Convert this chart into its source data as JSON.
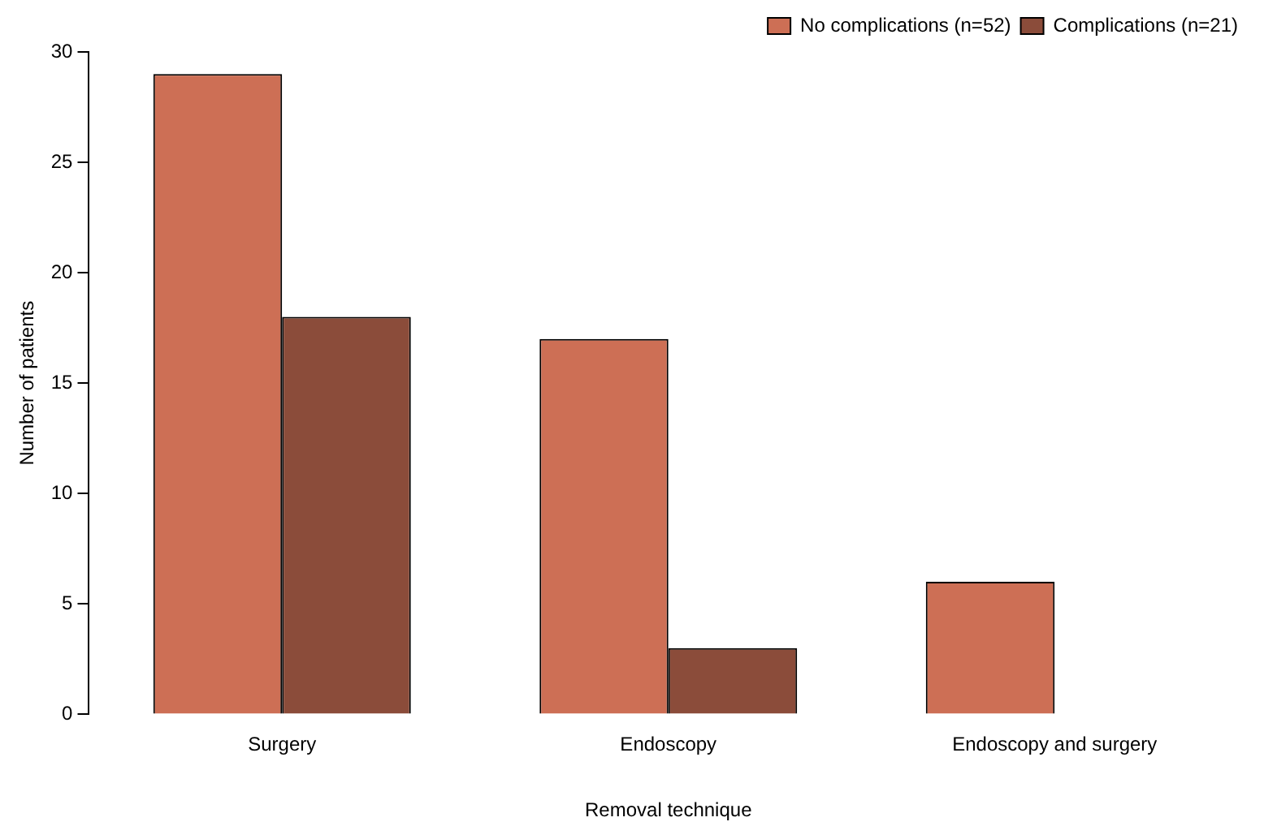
{
  "chart_data": {
    "type": "bar",
    "xlabel": "Removal technique",
    "ylabel": "Number of patients",
    "categories": [
      "Surgery",
      "Endoscopy",
      "Endoscopy and surgery"
    ],
    "series": [
      {
        "name": "No complications (n=52)",
        "color": "#cd6f55",
        "values": [
          29,
          17,
          6
        ]
      },
      {
        "name": "Complications (n=21)",
        "color": "#8b4c3a",
        "values": [
          18,
          3,
          0
        ]
      }
    ],
    "ylim": [
      0,
      30
    ],
    "yticks": [
      0,
      5,
      10,
      15,
      20,
      25,
      30
    ],
    "grid": false,
    "legend": "top right"
  }
}
